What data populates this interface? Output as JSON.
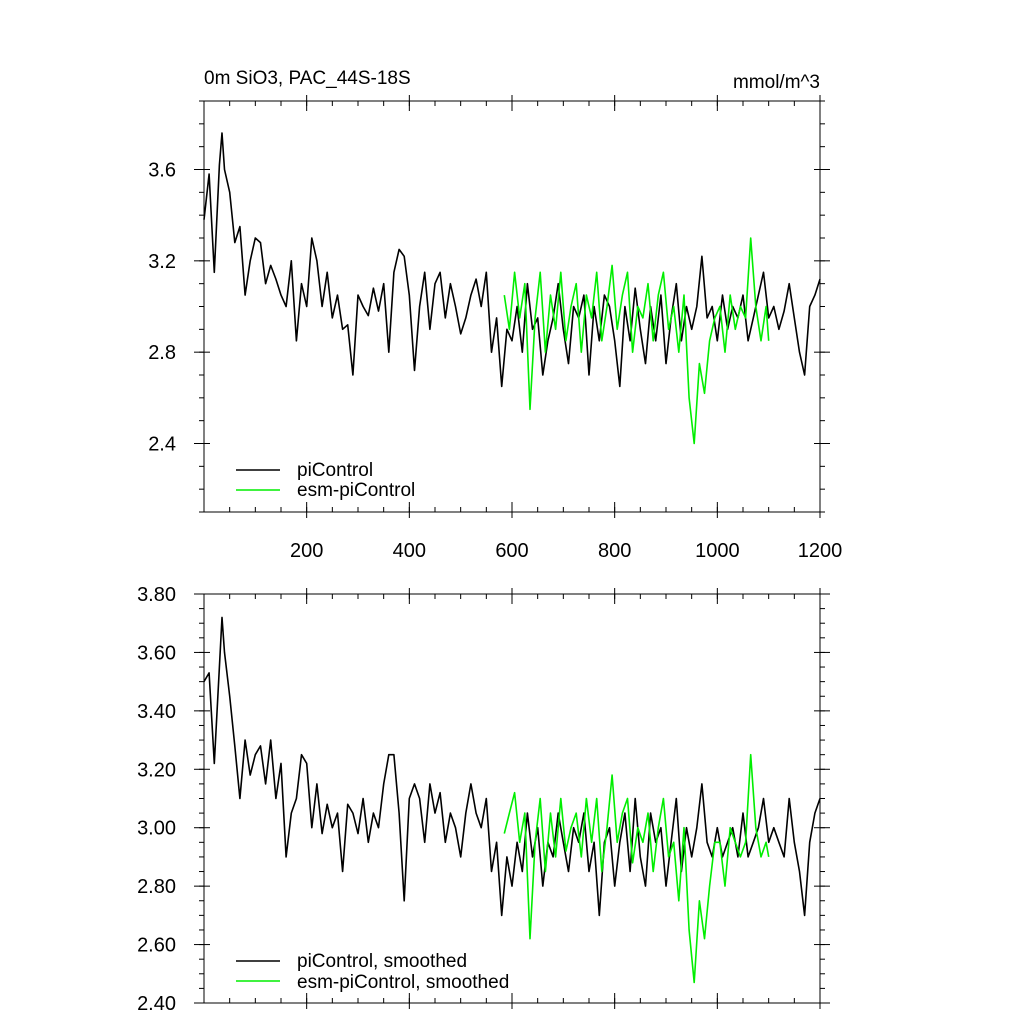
{
  "chart_data": [
    {
      "type": "line",
      "title": "0m SiO3, PAC_44S-18S",
      "units": "mmol/m^3",
      "xlim": [
        0,
        1200
      ],
      "ylim": [
        2.1,
        3.9
      ],
      "x_ticks": [
        200,
        400,
        600,
        800,
        1000,
        1200
      ],
      "x_tick_labels": [
        "200",
        "400",
        "600",
        "800",
        "1000",
        "1200"
      ],
      "y_ticks": [
        2.4,
        2.8,
        3.2,
        3.6
      ],
      "y_tick_labels": [
        "2.4",
        "2.8",
        "3.2",
        "3.6"
      ],
      "legend_position": "bottom-left",
      "series": [
        {
          "name": "piControl",
          "color": "#000000",
          "x": [
            0,
            10,
            20,
            30,
            35,
            40,
            50,
            60,
            70,
            80,
            90,
            100,
            110,
            120,
            130,
            140,
            150,
            160,
            170,
            180,
            190,
            200,
            210,
            220,
            230,
            240,
            250,
            260,
            270,
            280,
            290,
            300,
            310,
            320,
            330,
            340,
            350,
            360,
            370,
            380,
            390,
            400,
            410,
            420,
            430,
            440,
            450,
            460,
            470,
            480,
            490,
            500,
            510,
            520,
            530,
            540,
            550,
            560,
            570,
            580,
            590,
            600,
            610,
            620,
            630,
            640,
            650,
            660,
            670,
            680,
            690,
            700,
            710,
            720,
            730,
            740,
            750,
            760,
            770,
            780,
            790,
            800,
            810,
            820,
            830,
            840,
            850,
            860,
            870,
            880,
            890,
            900,
            910,
            920,
            930,
            940,
            950,
            960,
            970,
            980,
            990,
            1000,
            1010,
            1020,
            1030,
            1040,
            1050,
            1060,
            1070,
            1080,
            1090,
            1100,
            1110,
            1120,
            1130,
            1140,
            1150,
            1160,
            1170,
            1180,
            1190,
            1200
          ],
          "values": [
            3.38,
            3.58,
            3.15,
            3.62,
            3.76,
            3.6,
            3.5,
            3.28,
            3.35,
            3.05,
            3.2,
            3.3,
            3.28,
            3.1,
            3.18,
            3.12,
            3.05,
            3.0,
            3.2,
            2.85,
            3.1,
            3.0,
            3.3,
            3.2,
            3.0,
            3.15,
            2.95,
            3.05,
            2.9,
            2.92,
            2.7,
            3.05,
            3.0,
            2.96,
            3.08,
            2.98,
            3.1,
            2.8,
            3.15,
            3.25,
            3.22,
            3.05,
            2.72,
            3.0,
            3.15,
            2.9,
            3.1,
            3.15,
            2.95,
            3.1,
            3.0,
            2.88,
            2.95,
            3.05,
            3.12,
            3.0,
            3.15,
            2.8,
            2.95,
            2.65,
            2.9,
            2.85,
            3.0,
            2.8,
            3.1,
            2.9,
            2.95,
            2.7,
            2.85,
            2.95,
            3.1,
            2.9,
            2.75,
            3.0,
            2.95,
            3.05,
            2.7,
            3.0,
            2.85,
            3.05,
            3.0,
            2.85,
            2.65,
            3.0,
            2.85,
            3.08,
            2.9,
            2.75,
            3.0,
            2.85,
            3.05,
            2.75,
            2.95,
            3.1,
            2.85,
            3.0,
            2.9,
            3.0,
            3.22,
            2.95,
            3.0,
            2.85,
            3.05,
            2.9,
            3.0,
            2.95,
            3.05,
            2.85,
            2.95,
            3.05,
            3.15,
            2.95,
            3.0,
            2.9,
            2.98,
            3.1,
            2.95,
            2.8,
            2.7,
            3.0,
            3.05,
            3.12
          ],
          "line_width": 1.6
        },
        {
          "name": "esm-piControl",
          "color": "#00ee00",
          "x": [
            585,
            595,
            605,
            615,
            625,
            635,
            645,
            655,
            665,
            675,
            685,
            695,
            705,
            715,
            725,
            735,
            745,
            755,
            765,
            775,
            785,
            795,
            805,
            815,
            825,
            835,
            845,
            855,
            865,
            875,
            885,
            895,
            905,
            915,
            925,
            935,
            945,
            955,
            965,
            975,
            985,
            995,
            1005,
            1015,
            1025,
            1035,
            1045,
            1055,
            1065,
            1075,
            1085,
            1095,
            1100
          ],
          "values": [
            3.05,
            2.9,
            3.15,
            2.95,
            3.1,
            2.55,
            2.95,
            3.15,
            2.8,
            3.05,
            2.9,
            3.15,
            2.85,
            3.0,
            3.1,
            2.8,
            3.05,
            2.95,
            3.15,
            2.85,
            3.0,
            3.18,
            2.9,
            3.05,
            3.15,
            2.8,
            3.0,
            2.95,
            3.1,
            2.85,
            3.05,
            3.15,
            2.9,
            3.0,
            2.8,
            3.05,
            2.6,
            2.4,
            2.75,
            2.62,
            2.85,
            2.95,
            3.0,
            2.8,
            3.05,
            2.9,
            3.0,
            2.95,
            3.3,
            3.0,
            2.85,
            3.0,
            2.85
          ],
          "line_width": 1.6
        }
      ]
    },
    {
      "type": "line",
      "title": "",
      "xlim": [
        0,
        1200
      ],
      "ylim": [
        2.4,
        3.8
      ],
      "x_ticks": [
        200,
        400,
        600,
        800,
        1000,
        1200
      ],
      "x_tick_labels": [],
      "y_ticks": [
        2.4,
        2.6,
        2.8,
        3.0,
        3.2,
        3.4,
        3.6,
        3.8
      ],
      "y_tick_labels": [
        "2.40",
        "2.60",
        "2.80",
        "3.00",
        "3.20",
        "3.40",
        "3.60",
        "3.80"
      ],
      "legend_position": "bottom-left",
      "series": [
        {
          "name": "piControl, smoothed",
          "color": "#000000",
          "x": [
            0,
            10,
            20,
            30,
            35,
            40,
            50,
            60,
            70,
            80,
            90,
            100,
            110,
            120,
            130,
            140,
            150,
            160,
            170,
            180,
            190,
            200,
            210,
            220,
            230,
            240,
            250,
            260,
            270,
            280,
            290,
            300,
            310,
            320,
            330,
            340,
            350,
            360,
            370,
            380,
            390,
            400,
            410,
            420,
            430,
            440,
            450,
            460,
            470,
            480,
            490,
            500,
            510,
            520,
            530,
            540,
            550,
            560,
            570,
            580,
            590,
            600,
            610,
            620,
            630,
            640,
            650,
            660,
            670,
            680,
            690,
            700,
            710,
            720,
            730,
            740,
            750,
            760,
            770,
            780,
            790,
            800,
            810,
            820,
            830,
            840,
            850,
            860,
            870,
            880,
            890,
            900,
            910,
            920,
            930,
            940,
            950,
            960,
            970,
            980,
            990,
            1000,
            1010,
            1020,
            1030,
            1040,
            1050,
            1060,
            1070,
            1080,
            1090,
            1100,
            1110,
            1120,
            1130,
            1140,
            1150,
            1160,
            1170,
            1180,
            1190,
            1200
          ],
          "values": [
            3.5,
            3.53,
            3.22,
            3.55,
            3.72,
            3.6,
            3.45,
            3.28,
            3.1,
            3.3,
            3.18,
            3.25,
            3.28,
            3.15,
            3.3,
            3.1,
            3.22,
            2.9,
            3.05,
            3.1,
            3.25,
            3.22,
            3.0,
            3.15,
            2.98,
            3.08,
            3.0,
            3.05,
            2.85,
            3.08,
            3.05,
            2.98,
            3.1,
            2.95,
            3.05,
            3.0,
            3.15,
            3.25,
            3.25,
            3.05,
            2.75,
            3.1,
            3.15,
            3.1,
            2.95,
            3.15,
            3.05,
            3.12,
            2.95,
            3.05,
            3.0,
            2.9,
            3.05,
            3.15,
            3.05,
            3.0,
            3.1,
            2.85,
            2.95,
            2.7,
            2.9,
            2.8,
            2.95,
            2.85,
            3.05,
            2.9,
            3.0,
            2.8,
            2.95,
            2.9,
            3.05,
            2.95,
            2.85,
            3.0,
            2.95,
            3.05,
            2.85,
            2.95,
            2.7,
            2.95,
            3.0,
            2.8,
            2.95,
            3.05,
            2.85,
            3.1,
            2.9,
            2.8,
            3.05,
            2.95,
            3.0,
            2.8,
            2.95,
            3.1,
            2.85,
            3.0,
            2.9,
            3.0,
            3.15,
            2.95,
            2.9,
            3.0,
            2.9,
            2.95,
            3.0,
            2.9,
            3.05,
            2.9,
            2.95,
            3.0,
            3.1,
            2.95,
            3.0,
            2.95,
            2.9,
            3.1,
            2.95,
            2.85,
            2.7,
            2.95,
            3.05,
            3.1
          ],
          "line_width": 1.6
        },
        {
          "name": "esm-piControl, smoothed",
          "color": "#00ee00",
          "x": [
            585,
            595,
            605,
            615,
            625,
            635,
            645,
            655,
            665,
            675,
            685,
            695,
            705,
            715,
            725,
            735,
            745,
            755,
            765,
            775,
            785,
            795,
            805,
            815,
            825,
            835,
            845,
            855,
            865,
            875,
            885,
            895,
            905,
            915,
            925,
            935,
            945,
            955,
            965,
            975,
            985,
            995,
            1005,
            1015,
            1025,
            1035,
            1045,
            1055,
            1065,
            1075,
            1085,
            1095,
            1100
          ],
          "values": [
            2.98,
            3.05,
            3.12,
            2.95,
            3.05,
            2.62,
            2.95,
            3.1,
            2.85,
            3.05,
            2.9,
            3.1,
            2.92,
            3.0,
            3.05,
            2.9,
            3.1,
            2.95,
            3.1,
            2.85,
            3.0,
            3.18,
            2.95,
            3.05,
            3.1,
            2.88,
            3.0,
            2.95,
            3.05,
            2.85,
            3.0,
            3.1,
            2.9,
            2.95,
            2.75,
            3.0,
            2.65,
            2.47,
            2.75,
            2.62,
            2.8,
            2.95,
            2.95,
            2.8,
            3.0,
            2.95,
            2.9,
            2.95,
            3.25,
            3.0,
            2.9,
            2.95,
            2.9
          ],
          "line_width": 1.6
        }
      ]
    }
  ]
}
